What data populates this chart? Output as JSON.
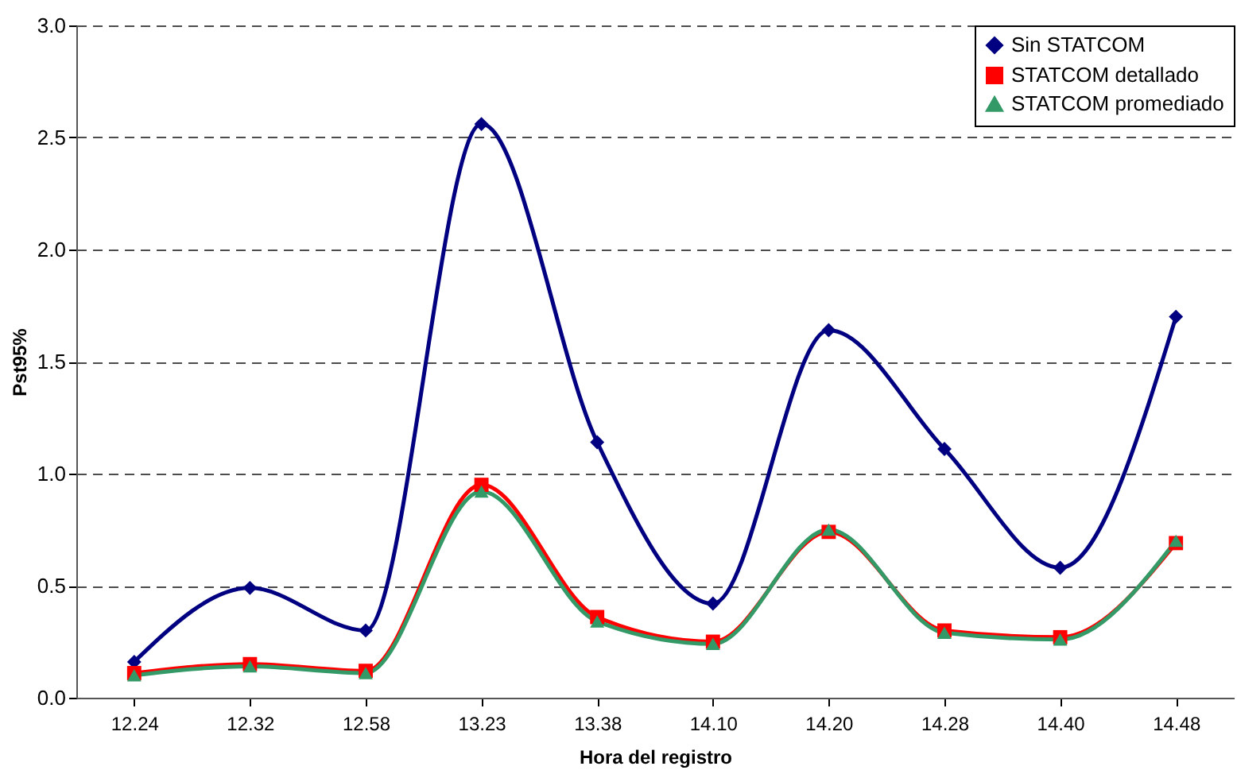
{
  "chart_data": {
    "type": "line",
    "xlabel": "Hora del registro",
    "ylabel": "Pst95%",
    "categories": [
      "12.24",
      "12.32",
      "12.58",
      "13.23",
      "13.38",
      "14.10",
      "14.20",
      "14.28",
      "14.40",
      "14.48"
    ],
    "series": [
      {
        "name": "Sin STATCOM",
        "color": "#000080",
        "marker": "diamond",
        "values": [
          0.16,
          0.49,
          0.3,
          2.56,
          1.14,
          0.42,
          1.64,
          1.11,
          0.58,
          1.7
        ]
      },
      {
        "name": "STATCOM detallado",
        "color": "#ff0000",
        "marker": "square",
        "values": [
          0.11,
          0.15,
          0.12,
          0.95,
          0.36,
          0.25,
          0.74,
          0.3,
          0.27,
          0.69
        ]
      },
      {
        "name": "STATCOM promediado",
        "color": "#339966",
        "marker": "triangle",
        "values": [
          0.1,
          0.14,
          0.11,
          0.92,
          0.34,
          0.24,
          0.75,
          0.29,
          0.26,
          0.7
        ]
      }
    ],
    "ylim": [
      0,
      3
    ],
    "yticks": [
      {
        "value": 0,
        "label": "0.0"
      },
      {
        "value": 0.5,
        "label": "0.5"
      },
      {
        "value": 1,
        "label": "1.0"
      },
      {
        "value": 1.5,
        "label": "1.5"
      },
      {
        "value": 2,
        "label": "2.0"
      },
      {
        "value": 2.5,
        "label": "2.5"
      },
      {
        "value": 3,
        "label": "3.0"
      }
    ],
    "grid": "y",
    "legend": "top right",
    "line_style": "solid"
  }
}
